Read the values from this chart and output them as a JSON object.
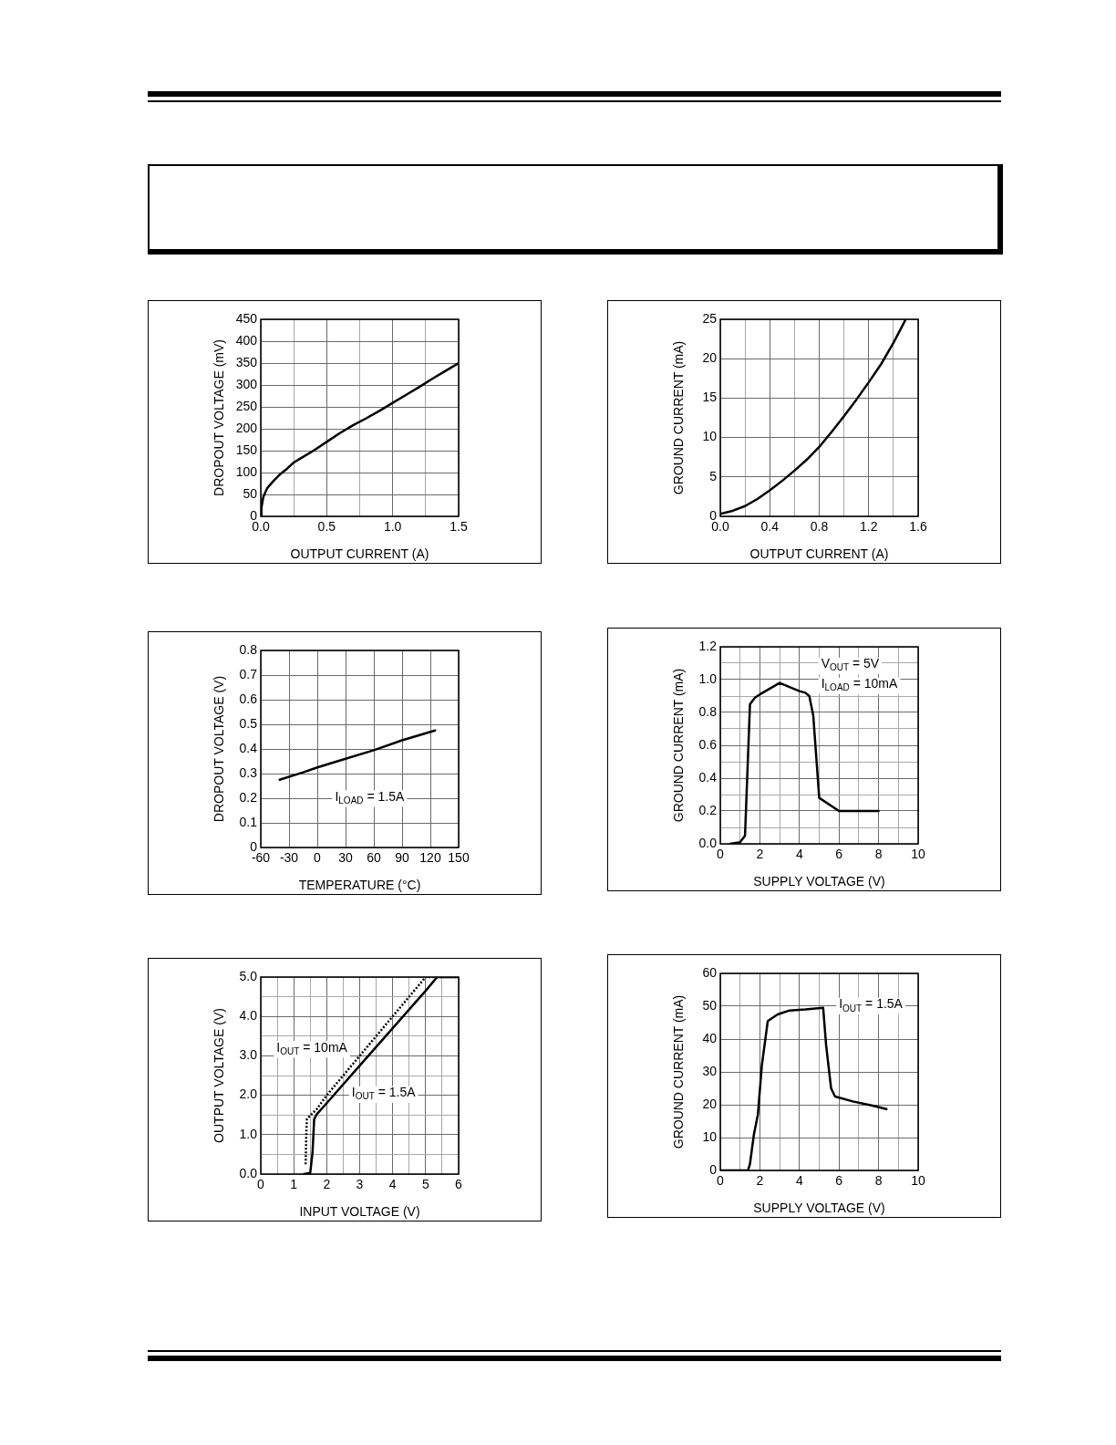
{
  "chart_data": [
    {
      "type": "line",
      "xlabel": "OUTPUT CURRENT (A)",
      "ylabel": "DROPOUT VOLTAGE (mV)",
      "series": [
        {
          "color": "#000000",
          "x": [
            0,
            0.005,
            0.02,
            0.05,
            0.1,
            0.15,
            0.2,
            0.25,
            0.3,
            0.4,
            0.5,
            0.6,
            0.7,
            0.8,
            0.9,
            1.0,
            1.1,
            1.2,
            1.3,
            1.4,
            1.5
          ],
          "values": [
            0,
            20,
            45,
            65,
            82,
            97,
            109,
            123,
            132,
            150,
            170,
            190,
            208,
            224,
            241,
            259,
            277,
            295,
            314,
            332,
            350
          ]
        }
      ],
      "xlim": [
        0,
        1.5
      ],
      "xticks": [
        {
          "value": 0,
          "label": "0.0"
        },
        {
          "value": 0.25,
          "label": null
        },
        0.5,
        {
          "value": 0.75,
          "label": null
        },
        {
          "value": 1,
          "label": "1.0"
        },
        {
          "value": 1.25,
          "label": null
        },
        1.5
      ],
      "ylim": [
        0,
        450
      ],
      "yticks": [
        0,
        50,
        100,
        150,
        200,
        250,
        300,
        350,
        400,
        450
      ],
      "grid": true,
      "marker": "none"
    },
    {
      "type": "line",
      "xlabel": "OUTPUT CURRENT (A)",
      "ylabel": "GROUND CURRENT (mA)",
      "series": [
        {
          "color": "#000000",
          "x": [
            0,
            0.1,
            0.2,
            0.3,
            0.4,
            0.5,
            0.6,
            0.7,
            0.8,
            0.9,
            1.0,
            1.1,
            1.2,
            1.3,
            1.4,
            1.5
          ],
          "values": [
            0.3,
            0.7,
            1.3,
            2.2,
            3.3,
            4.5,
            5.8,
            7.2,
            8.8,
            10.7,
            12.7,
            14.8,
            17.0,
            19.3,
            22.0,
            25.0
          ]
        }
      ],
      "xlim": [
        0,
        1.6
      ],
      "xticks": [
        {
          "value": 0,
          "label": "0.0"
        },
        {
          "value": 0.2,
          "label": null
        },
        0.4,
        {
          "value": 0.6,
          "label": null
        },
        0.8,
        {
          "value": 1,
          "label": null
        },
        1.2,
        {
          "value": 1.4,
          "label": null
        },
        1.6
      ],
      "ylim": [
        0,
        25
      ],
      "yticks": [
        0,
        5,
        10,
        15,
        20,
        25
      ],
      "grid": true,
      "marker": "none"
    },
    {
      "type": "line",
      "xlabel": "TEMPERATURE (°C)",
      "ylabel": "DROPOUT VOLTAGE (V)",
      "series": [
        {
          "color": "#000000",
          "x": [
            -40,
            -15,
            0,
            30,
            60,
            90,
            125
          ],
          "values": [
            0.275,
            0.305,
            0.325,
            0.36,
            0.395,
            0.435,
            0.475
          ]
        }
      ],
      "xlim": [
        -60,
        150
      ],
      "xticks": [
        -60,
        -30,
        0,
        30,
        60,
        90,
        120,
        150
      ],
      "ylim": [
        0,
        0.8
      ],
      "yticks": [
        0,
        0.1,
        0.2,
        0.3,
        0.4,
        0.5,
        0.6,
        0.7,
        0.8
      ],
      "grid": true,
      "marker": "none",
      "annotations": [
        "I$_{LOAD}$ = 1.5A"
      ]
    },
    {
      "type": "line",
      "xlabel": "SUPPLY VOLTAGE (V)",
      "ylabel": "GROUND CURRENT (mA)",
      "series": [
        {
          "color": "#000000",
          "x": [
            0.5,
            1.0,
            1.25,
            1.5,
            1.75,
            2,
            3,
            4,
            4.3,
            4.5,
            4.7,
            5,
            6,
            8
          ],
          "values": [
            0,
            0.01,
            0.05,
            0.85,
            0.89,
            0.91,
            0.98,
            0.93,
            0.92,
            0.9,
            0.78,
            0.28,
            0.2,
            0.2
          ]
        }
      ],
      "xlim": [
        0,
        10
      ],
      "xticks": [
        0,
        {
          "value": 1,
          "label": null
        },
        2,
        {
          "value": 3,
          "label": null
        },
        4,
        {
          "value": 5,
          "label": null
        },
        6,
        {
          "value": 7,
          "label": null
        },
        8,
        {
          "value": 9,
          "label": null
        },
        10
      ],
      "ylim": [
        0,
        1.2
      ],
      "yticks": [
        {
          "value": 0,
          "label": "0.0"
        },
        {
          "value": 0.1,
          "label": null
        },
        0.2,
        {
          "value": 0.3,
          "label": null
        },
        0.4,
        {
          "value": 0.5,
          "label": null
        },
        0.6,
        {
          "value": 0.7,
          "label": null
        },
        0.8,
        {
          "value": 0.9,
          "label": null
        },
        {
          "value": 1,
          "label": "1.0"
        },
        {
          "value": 1.1,
          "label": null
        },
        1.2
      ],
      "grid": true,
      "marker": "none",
      "annotations": [
        "V$_{OUT}$ = 5V",
        "I$_{LOAD}$ = 10mA"
      ]
    },
    {
      "type": "line",
      "xlabel": "INPUT VOLTAGE (V)",
      "ylabel": "OUTPUT VOLTAGE (V)",
      "series": [
        {
          "name": "I$_{OUT}$ = 10mA",
          "color": "#000000",
          "line_style": "dotted",
          "x": [
            1.36,
            1.38,
            1.4,
            1.7,
            2,
            3,
            4,
            4.5,
            5,
            6
          ],
          "values": [
            0.25,
            1.0,
            1.4,
            1.65,
            2,
            3,
            4,
            4.5,
            5,
            5
          ]
        },
        {
          "name": "I$_{OUT}$ = 1.5A",
          "color": "#000000",
          "x": [
            1.31,
            1.5,
            1.57,
            1.62,
            1.7,
            2,
            3,
            4,
            5,
            5.35,
            6
          ],
          "values": [
            0,
            0.03,
            0.55,
            1.4,
            1.52,
            1.8,
            2.75,
            3.7,
            4.65,
            5,
            5
          ]
        }
      ],
      "xlim": [
        0,
        6
      ],
      "xticks": [
        0,
        {
          "value": 0.5,
          "label": null
        },
        1,
        {
          "value": 1.5,
          "label": null
        },
        2,
        {
          "value": 2.5,
          "label": null
        },
        3,
        {
          "value": 3.5,
          "label": null
        },
        4,
        {
          "value": 4.5,
          "label": null
        },
        5,
        {
          "value": 5.5,
          "label": null
        },
        6
      ],
      "ylim": [
        0,
        5
      ],
      "yticks": [
        {
          "value": 0,
          "label": "0.0"
        },
        {
          "value": 0.5,
          "label": null
        },
        {
          "value": 1,
          "label": "1.0"
        },
        {
          "value": 1.5,
          "label": null
        },
        {
          "value": 2,
          "label": "2.0"
        },
        {
          "value": 2.5,
          "label": null
        },
        {
          "value": 3,
          "label": "3.0"
        },
        {
          "value": 3.5,
          "label": null
        },
        {
          "value": 4,
          "label": "4.0"
        },
        {
          "value": 4.5,
          "label": null
        },
        {
          "value": 5,
          "label": "5.0"
        }
      ],
      "grid": true,
      "marker": "none"
    },
    {
      "type": "line",
      "xlabel": "SUPPLY VOLTAGE (V)",
      "ylabel": "GROUND CURRENT (mA)",
      "series": [
        {
          "color": "#000000",
          "x": [
            0,
            1.4,
            1.5,
            1.7,
            1.9,
            2.1,
            2.4,
            2.9,
            3.5,
            4.3,
            5.2,
            5.35,
            5.6,
            5.8,
            6.7,
            7.7,
            8.4
          ],
          "values": [
            0,
            0,
            2,
            11,
            17,
            32,
            45.5,
            47.5,
            48.7,
            49,
            49.5,
            38,
            25,
            22.5,
            21,
            19.7,
            18.7
          ]
        }
      ],
      "xlim": [
        0,
        10
      ],
      "xticks": [
        0,
        {
          "value": 1,
          "label": null
        },
        2,
        {
          "value": 3,
          "label": null
        },
        4,
        {
          "value": 5,
          "label": null
        },
        6,
        {
          "value": 7,
          "label": null
        },
        8,
        {
          "value": 9,
          "label": null
        },
        10
      ],
      "ylim": [
        0,
        60
      ],
      "yticks": [
        0,
        10,
        20,
        30,
        40,
        50,
        60
      ],
      "grid": true,
      "marker": "none",
      "annotations": [
        "I$_{OUT}$ = 1.5A"
      ]
    }
  ]
}
